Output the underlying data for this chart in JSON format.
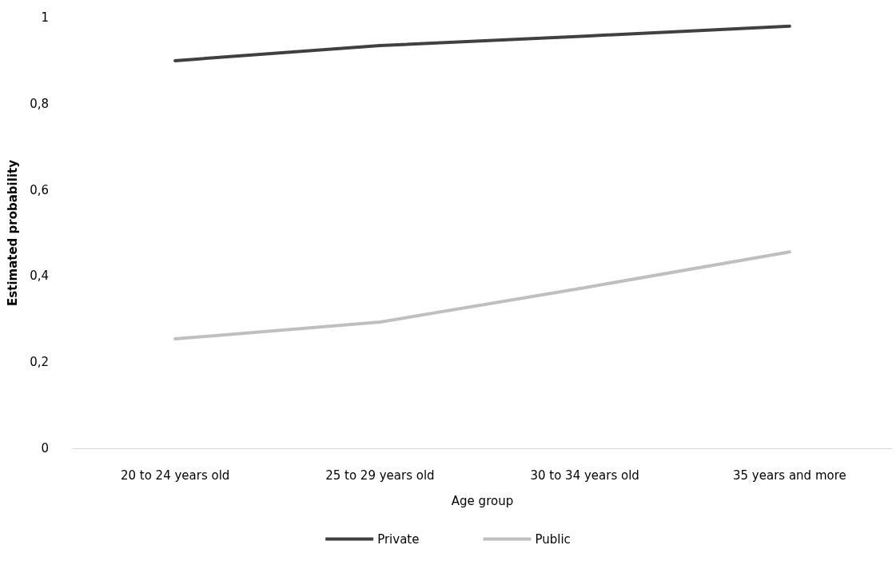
{
  "chart_data": {
    "type": "line",
    "xlabel": "Age group",
    "ylabel": "Estimated probability",
    "categories": [
      "20 to 24 years old",
      "25 to 29 years old",
      "30 to 34 years old",
      "35 years and more"
    ],
    "series": [
      {
        "name": "Private",
        "color": "#404040",
        "values": [
          0.9,
          0.935,
          0.957,
          0.98
        ]
      },
      {
        "name": "Public",
        "color": "#bfbfbf",
        "values": [
          0.254,
          0.293,
          0.373,
          0.456
        ]
      }
    ],
    "ylim": [
      0,
      1
    ],
    "yticks": [
      {
        "value": 0,
        "label": "0"
      },
      {
        "value": 0.2,
        "label": "0,2"
      },
      {
        "value": 0.4,
        "label": "0,4"
      },
      {
        "value": 0.6,
        "label": "0,6"
      },
      {
        "value": 0.8,
        "label": "0,8"
      },
      {
        "value": 1,
        "label": "1"
      }
    ],
    "grid": false,
    "legend": "bottom",
    "marker": "none",
    "line_style": "solid"
  }
}
